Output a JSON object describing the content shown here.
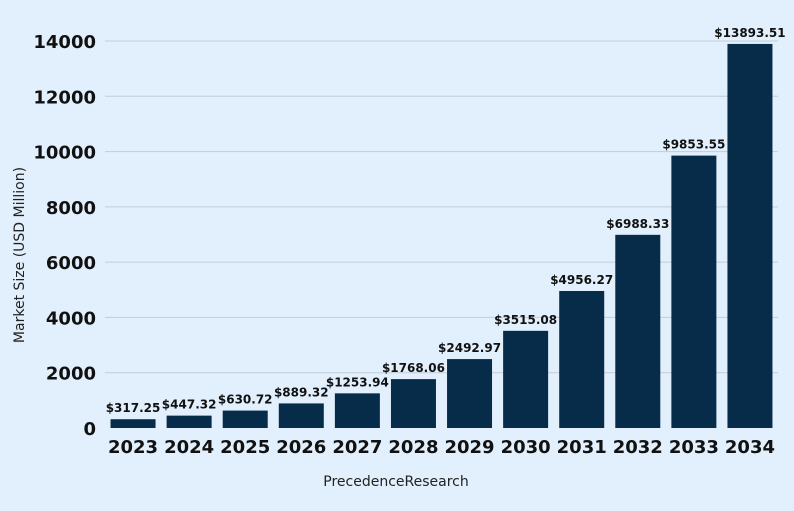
{
  "chart_data": {
    "type": "bar",
    "categories": [
      "2023",
      "2024",
      "2025",
      "2026",
      "2027",
      "2028",
      "2029",
      "2030",
      "2031",
      "2032",
      "2033",
      "2034"
    ],
    "values": [
      317.25,
      447.32,
      630.72,
      889.32,
      1253.94,
      1768.06,
      2492.97,
      3515.08,
      4956.27,
      6988.33,
      9853.55,
      13893.51
    ],
    "data_labels": [
      "$317.25",
      "$447.32",
      "$630.72",
      "$889.32",
      "$1253.94",
      "$1768.06",
      "$2492.97",
      "$3515.08",
      "$4956.27",
      "$6988.33",
      "$9853.55",
      "$13893.51"
    ],
    "title": "",
    "xlabel": "PrecedenceResearch",
    "ylabel": "Market Size (USD Million)",
    "ylim": [
      0,
      14000
    ],
    "yticks": [
      "0",
      "2000",
      "4000",
      "6000",
      "8000",
      "10000",
      "12000",
      "14000"
    ],
    "grid": true,
    "bar_color": "#062c4a",
    "background_color": "#e2f0fd"
  }
}
